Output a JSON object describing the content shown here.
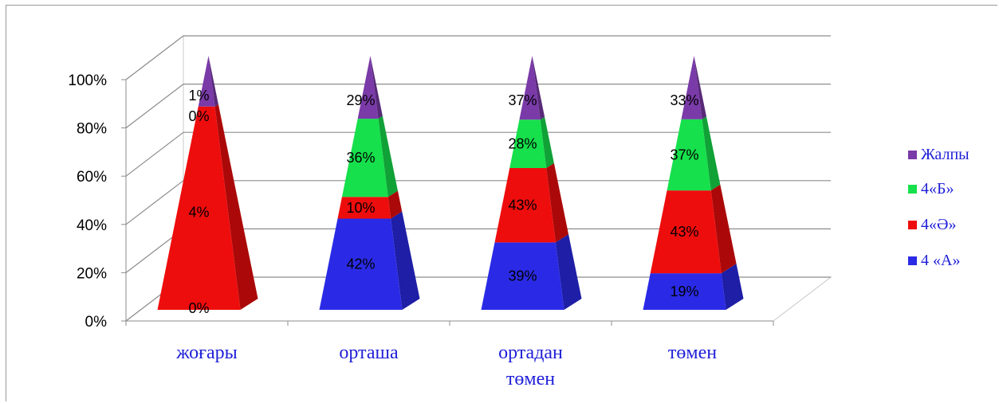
{
  "chart_data": {
    "type": "bar",
    "stacked": "percent",
    "style": "3d-pyramid",
    "categories": [
      "жоғары",
      "орташа",
      "ортадан төмен",
      "төмен"
    ],
    "categories_lines": [
      [
        "жоғары"
      ],
      [
        "орташа"
      ],
      [
        "ортадан",
        "төмен"
      ],
      [
        "төмен"
      ]
    ],
    "y_ticks": [
      "0%",
      "20%",
      "40%",
      "60%",
      "80%",
      "100%"
    ],
    "ylim": [
      0,
      100
    ],
    "legend_position": "right",
    "series": [
      {
        "name": "4 «А»",
        "color": "#2a2ae6",
        "values": [
          0,
          42,
          39,
          19
        ],
        "labels": [
          "0%",
          "42%",
          "39%",
          "19%"
        ]
      },
      {
        "name": "4«Ә»",
        "color": "#ee0d0d",
        "values": [
          4,
          10,
          43,
          43
        ],
        "labels": [
          "4%",
          "10%",
          "43%",
          "43%"
        ]
      },
      {
        "name": "4«Б»",
        "color": "#16e04c",
        "values": [
          0,
          36,
          28,
          37
        ],
        "labels": [
          "0%",
          "36%",
          "28%",
          "37%"
        ]
      },
      {
        "name": "Жалпы",
        "color": "#7a3aa8",
        "values": [
          1,
          29,
          37,
          33
        ],
        "labels": [
          "1%",
          "29%",
          "37%",
          "33%"
        ]
      }
    ],
    "legend_order": [
      "Жалпы",
      "4«Б»",
      "4«Ә»",
      "4 «А»"
    ]
  }
}
